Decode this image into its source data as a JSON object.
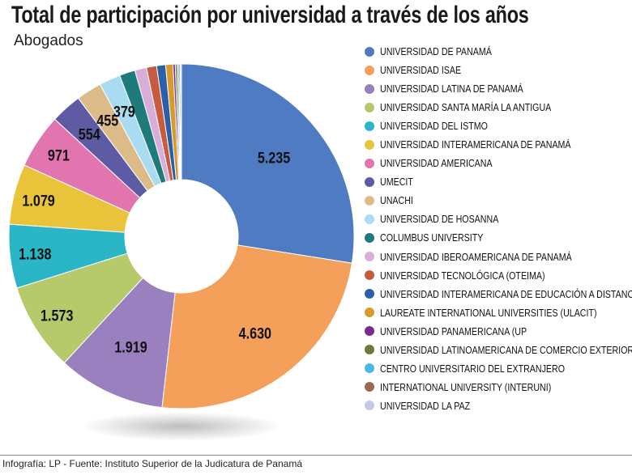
{
  "title": "Total de participación por universidad a través de los años",
  "subtitle": "Abogados",
  "footer": "Infografía: LP - Fuente: Instituto Superior de la Judicatura de Panamá",
  "chart_data": {
    "type": "pie",
    "variant": "donut",
    "legend_position": "right",
    "series": [
      {
        "name": "UNIVERSIDAD DE PANAMÁ",
        "value": 5235,
        "label": "5.235",
        "color": "#4f7bc2"
      },
      {
        "name": "UNIVERSIDAD ISAE",
        "value": 4630,
        "label": "4.630",
        "color": "#f5a05a"
      },
      {
        "name": "UNIVERSIDAD LATINA DE PANAMÁ",
        "value": 1919,
        "label": "1.919",
        "color": "#9a80bf"
      },
      {
        "name": "UNIVERSIDAD SANTA MARÍA LA ANTIGUA",
        "value": 1573,
        "label": "1.573",
        "color": "#b6c96b"
      },
      {
        "name": "UNIVERSIDAD DEL ISTMO",
        "value": 1138,
        "label": "1.138",
        "color": "#2bb6c8"
      },
      {
        "name": "UNIVERSIDAD INTERAMERICANA DE PANAMÁ",
        "value": 1079,
        "label": "1.079",
        "color": "#e9c43b"
      },
      {
        "name": "UNIVERSIDAD AMERICANA",
        "value": 971,
        "label": "971",
        "color": "#e274af"
      },
      {
        "name": "UMECIT",
        "value": 554,
        "label": "554",
        "color": "#5c5ba4"
      },
      {
        "name": "UNACHI",
        "value": 455,
        "label": "455",
        "color": "#dcbb89"
      },
      {
        "name": "UNIVERSIDAD DE HOSANNA",
        "value": 379,
        "label": "379",
        "color": "#a9dcf1"
      },
      {
        "name": "COLUMBUS UNIVERSITY",
        "value": 280,
        "label": "",
        "color": "#1f7a7b"
      },
      {
        "name": "UNIVERSIDAD IBEROAMERICANA DE PANAMÁ",
        "value": 210,
        "label": "",
        "color": "#d8aed8"
      },
      {
        "name": "UNIVERSIDAD TECNOLÓGICA (OTEIMA)",
        "value": 180,
        "label": "",
        "color": "#c85b3d"
      },
      {
        "name": "UNIVERSIDAD INTERAMERICANA DE EDUCACIÓN A DISTANCIA",
        "value": 160,
        "label": "",
        "color": "#2b60a9"
      },
      {
        "name": "LAUREATE INTERNATIONAL UNIVERSITIES (ULACIT)",
        "value": 130,
        "label": "",
        "color": "#d89b2b"
      },
      {
        "name": "UNIVERSIDAD PANAMERICANA (UP",
        "value": 40,
        "label": "",
        "color": "#7a2b8b"
      },
      {
        "name": "UNIVERSIDAD LATINOAMERICANA DE COMERCIO EXTERIOR",
        "value": 35,
        "label": "",
        "color": "#6a7b3b"
      },
      {
        "name": "CENTRO UNIVERSITARIO DEL EXTRANJERO",
        "value": 30,
        "label": "",
        "color": "#4bb9e1"
      },
      {
        "name": "INTERNATIONAL UNIVERSITY (INTERUNI)",
        "value": 25,
        "label": "",
        "color": "#9b6b51"
      },
      {
        "name": "UNIVERSIDAD LA PAZ",
        "value": 20,
        "label": "",
        "color": "#c2c9e1"
      }
    ]
  }
}
